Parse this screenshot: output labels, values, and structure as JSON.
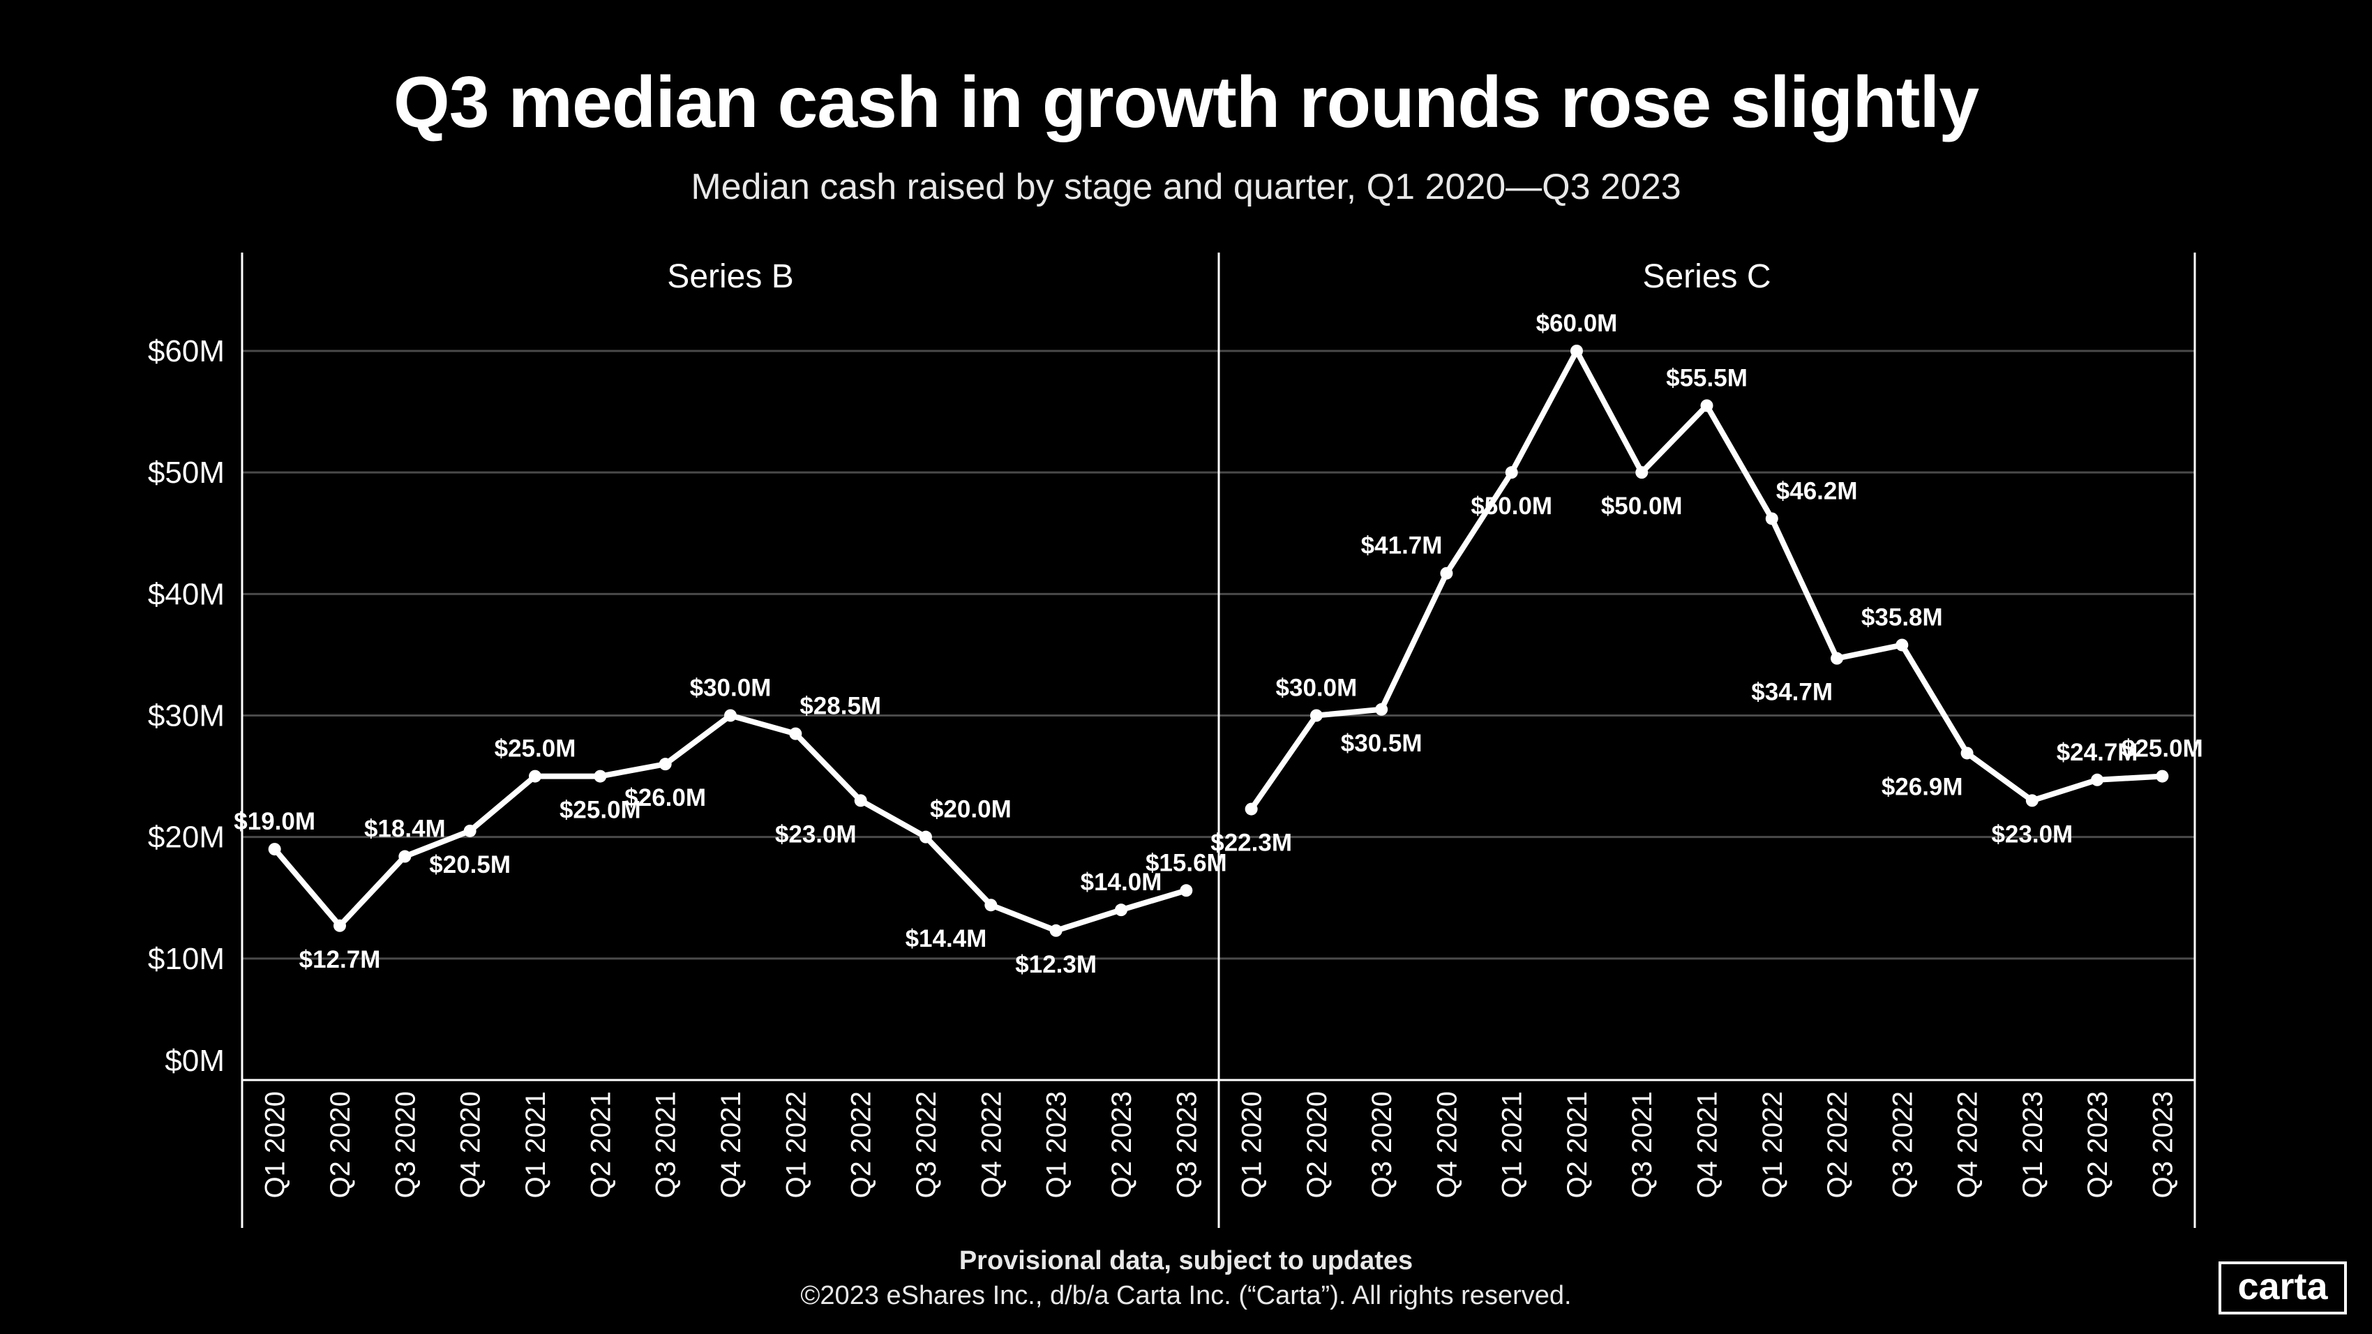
{
  "title": "Q3 median cash in growth rounds rose slightly",
  "subtitle": "Median cash raised by stage and quarter, Q1 2020—Q3 2023",
  "footnote": "Provisional data, subject to updates",
  "copyright": "©2023 eShares Inc., d/b/a Carta Inc. (“Carta”). All rights reserved.",
  "logo": "carta",
  "colors": {
    "background": "#000000",
    "line": "#ffffff",
    "grid": "#4a4a4a"
  },
  "chart_data": [
    {
      "type": "line",
      "title": "Series B",
      "categories": [
        "Q1 2020",
        "Q2 2020",
        "Q3 2020",
        "Q4 2020",
        "Q1 2021",
        "Q2 2021",
        "Q3 2021",
        "Q4 2021",
        "Q1 2022",
        "Q2 2022",
        "Q3 2022",
        "Q4 2022",
        "Q1 2023",
        "Q2 2023",
        "Q3 2023"
      ],
      "values": [
        19.0,
        12.7,
        18.4,
        20.5,
        25.0,
        25.0,
        26.0,
        30.0,
        28.5,
        23.0,
        20.0,
        14.4,
        12.3,
        14.0,
        15.6
      ],
      "data_labels": [
        "$19.0M",
        "$12.7M",
        "$18.4M",
        "$20.5M",
        "$25.0M",
        "$25.0M",
        "$26.0M",
        "$30.0M",
        "$28.5M",
        "$23.0M",
        "$20.0M",
        "$14.4M",
        "$12.3M",
        "$14.0M",
        "$15.6M"
      ],
      "ylim": [
        0,
        60
      ],
      "yticks": [
        0,
        10,
        20,
        30,
        40,
        50,
        60
      ],
      "ytick_labels": [
        "$0M",
        "$10M",
        "$20M",
        "$30M",
        "$40M",
        "$50M",
        "$60M"
      ],
      "grid": true
    },
    {
      "type": "line",
      "title": "Series C",
      "categories": [
        "Q1 2020",
        "Q2 2020",
        "Q3 2020",
        "Q4 2020",
        "Q1 2021",
        "Q2 2021",
        "Q3 2021",
        "Q4 2021",
        "Q1 2022",
        "Q2 2022",
        "Q3 2022",
        "Q4 2022",
        "Q1 2023",
        "Q2 2023",
        "Q3 2023"
      ],
      "values": [
        22.3,
        30.0,
        30.5,
        41.7,
        50.0,
        60.0,
        50.0,
        55.5,
        46.2,
        34.7,
        35.8,
        26.9,
        23.0,
        24.7,
        25.0
      ],
      "data_labels": [
        "$22.3M",
        "$30.0M",
        "$30.5M",
        "$41.7M",
        "$50.0M",
        "$60.0M",
        "$50.0M",
        "$55.5M",
        "$46.2M",
        "$34.7M",
        "$35.8M",
        "$26.9M",
        "$23.0M",
        "$24.7M",
        "$25.0M"
      ],
      "ylim": [
        0,
        60
      ],
      "grid": true
    }
  ]
}
